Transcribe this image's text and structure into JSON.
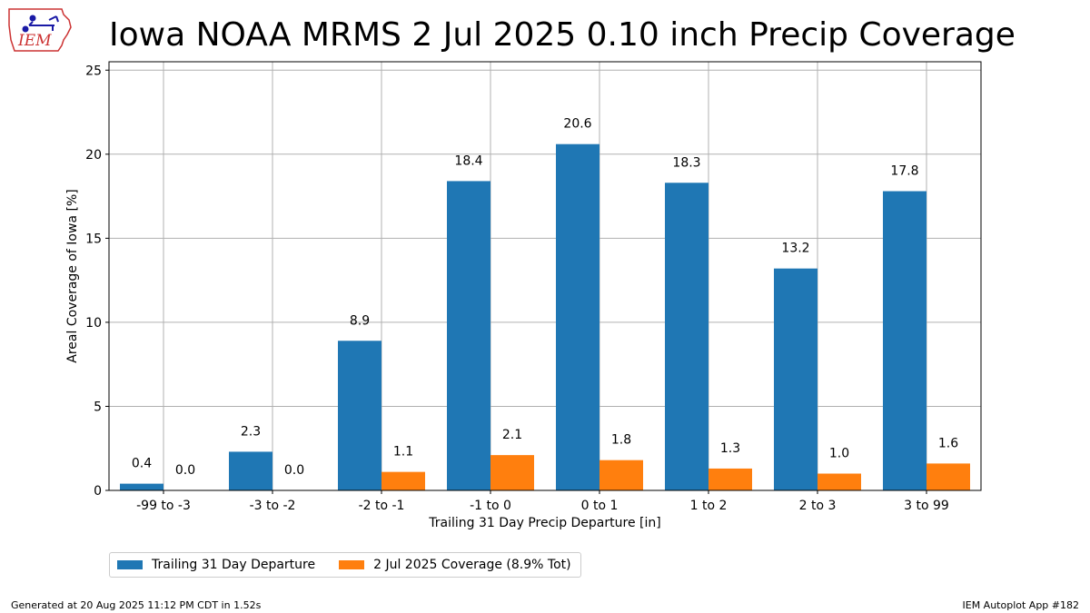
{
  "title": "Iowa NOAA MRMS 2 Jul 2025 0.10 inch Precip Coverage",
  "logo_text": "IEM",
  "chart_data": {
    "type": "bar",
    "xlabel": "Trailing 31 Day Precip Departure [in]",
    "ylabel": "Areal Coverage of Iowa [%]",
    "ylim": [
      0,
      25.5
    ],
    "yticks": [
      0,
      5,
      10,
      15,
      20,
      25
    ],
    "grid": true,
    "legend_position": "bottom-left",
    "categories": [
      "-99 to -3",
      "-3 to -2",
      "-2 to -1",
      "-1 to 0",
      "0 to 1",
      "1 to 2",
      "2 to 3",
      "3 to 99"
    ],
    "series": [
      {
        "name": "Trailing 31 Day Departure",
        "color": "#1f77b4",
        "values": [
          0.4,
          2.3,
          8.9,
          18.4,
          20.6,
          18.3,
          13.2,
          17.8
        ],
        "labels": [
          "0.4",
          "2.3",
          "8.9",
          "18.4",
          "20.6",
          "18.3",
          "13.2",
          "17.8"
        ]
      },
      {
        "name": "2 Jul 2025 Coverage (8.9% Tot)",
        "color": "#ff7f0e",
        "values": [
          0.0,
          0.0,
          1.1,
          2.1,
          1.8,
          1.3,
          1.0,
          1.6
        ],
        "labels": [
          "0.0",
          "0.0",
          "1.1",
          "2.1",
          "1.8",
          "1.3",
          "1.0",
          "1.6"
        ]
      }
    ]
  },
  "footer": {
    "left": "Generated at 20 Aug 2025 11:12 PM CDT in 1.52s",
    "right": "IEM Autoplot App #182"
  }
}
